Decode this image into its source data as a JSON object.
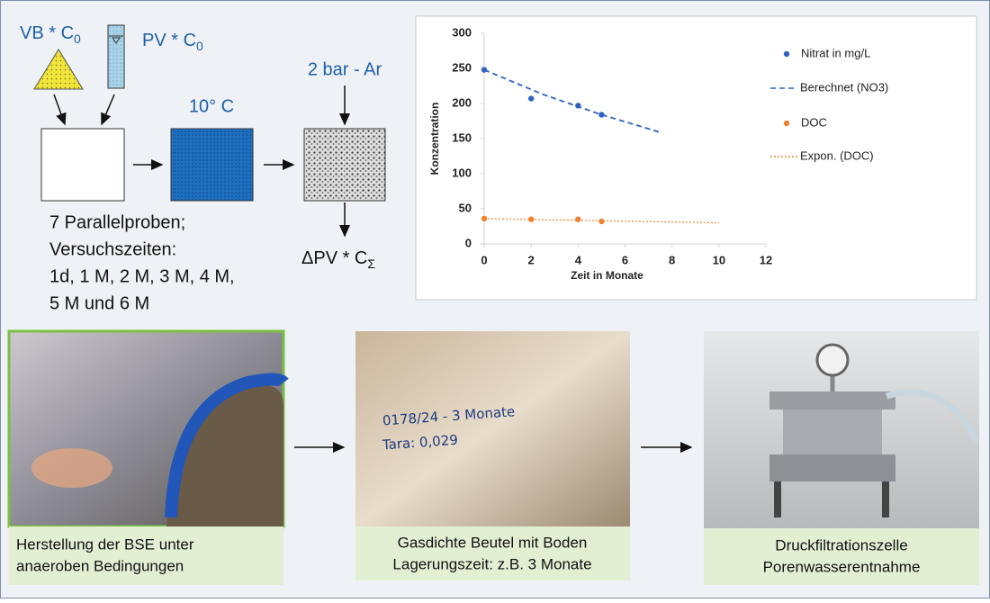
{
  "diagram": {
    "vb_label": {
      "main": "VB * C",
      "sub": "0"
    },
    "pv_label": {
      "main": "PV * C",
      "sub": "0"
    },
    "temperature": "10° C",
    "pressure": "2 bar - Ar",
    "output_label": {
      "main": "ΔPV * C",
      "sub": "Σ"
    },
    "notes": [
      "7 Parallelproben;",
      "Versuchszeiten:",
      "1d, 1 M, 2 M, 3 M, 4 M,",
      "5 M und 6 M"
    ],
    "photos": [
      {
        "caption": [
          "Herstellung der BSE unter",
          "anaeroben Bedingungen"
        ]
      },
      {
        "caption": [
          "Gasdichte Beutel mit Boden",
          "Lagerungszeit: z.B. 3 Monate"
        ],
        "handwriting": [
          "0178/24 - 3 Monate",
          "Tara: 0,029"
        ]
      },
      {
        "caption": [
          "Druckfiltrationszelle",
          "Porenwasserentnahme"
        ]
      }
    ]
  },
  "chart_data": {
    "type": "scatter",
    "x_label": "Zeit in Monate",
    "y_label": "Konzentration",
    "xlim": [
      0,
      12
    ],
    "xticks": [
      0,
      2,
      4,
      6,
      8,
      10,
      12
    ],
    "ylim": [
      0,
      300
    ],
    "yticks": [
      0,
      50,
      100,
      150,
      200,
      250,
      300
    ],
    "grid": false,
    "legend": "right",
    "series": [
      {
        "name": "Nitrat in mg/L",
        "color": "#2e63c4",
        "style": "marker",
        "x": [
          0,
          2,
          4,
          5
        ],
        "values": [
          248,
          207,
          197,
          184
        ]
      },
      {
        "name": "Berechnet (NO3)",
        "color": "#2e63c4",
        "style": "dashed",
        "x": [
          0,
          2.5,
          5,
          7.5
        ],
        "values": [
          248,
          213,
          184,
          159
        ]
      },
      {
        "name": "DOC",
        "color": "#f0812f",
        "style": "marker",
        "x": [
          0,
          2,
          4,
          5
        ],
        "values": [
          36,
          35,
          35,
          32
        ]
      },
      {
        "name": "Expon. (DOC)",
        "color": "#f0812f",
        "style": "dotted",
        "x": [
          0,
          5,
          10
        ],
        "values": [
          36,
          33,
          30
        ]
      }
    ]
  }
}
